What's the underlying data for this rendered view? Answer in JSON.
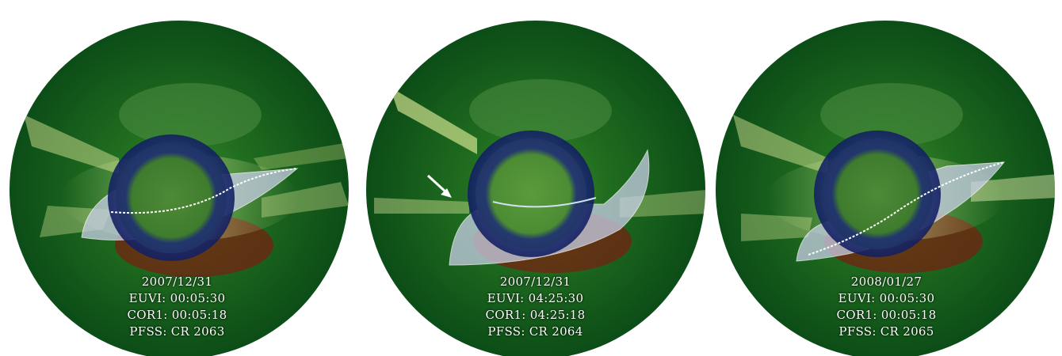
{
  "panels": [
    {
      "date": "2007/12/31",
      "euvi": "EUVI: 00:05:30",
      "cor1": "COR1: 00:05:18",
      "pfss": "PFSS: CR 2063",
      "has_arrow": false
    },
    {
      "date": "2007/12/31",
      "euvi": "EUVI: 04:25:30",
      "cor1": "COR1: 04:25:18",
      "pfss": "PFSS: CR 2064",
      "has_arrow": true
    },
    {
      "date": "2008/01/27",
      "euvi": "EUVI: 00:05:30",
      "cor1": "COR1: 00:05:18",
      "pfss": "PFSS: CR 2065",
      "has_arrow": false
    }
  ],
  "colors": {
    "background": "#ffffff",
    "coronagraph_green": "#0f5a1c",
    "disk_green": "#3e7a2a",
    "occulter_blue": "#1c2a78",
    "current_sheet": "#d8dcf0",
    "south_red": "#7a1e10"
  }
}
